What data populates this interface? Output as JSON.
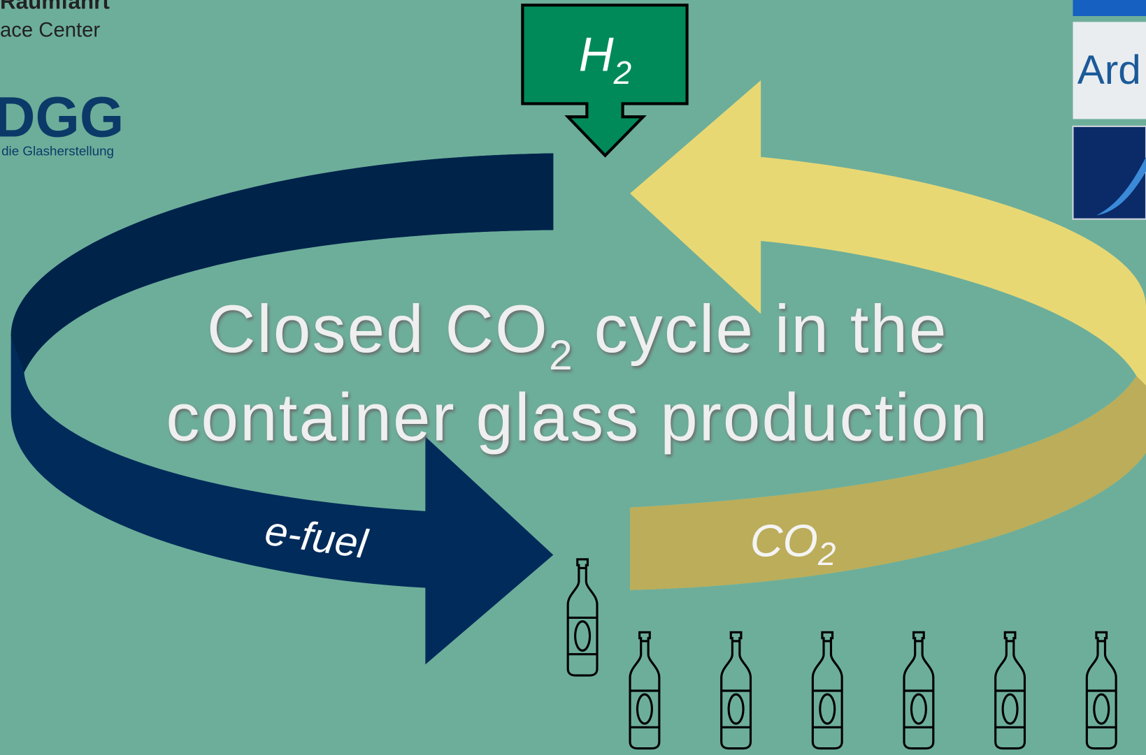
{
  "logos": {
    "dlr": {
      "line1": "Raumfahrt",
      "line2": "ace Center"
    },
    "dgg": {
      "name": "DGG",
      "tagline": "die Glasherstellung"
    },
    "ardagh": {
      "name": "Ard"
    }
  },
  "inputs": {
    "h2": {
      "symbol": "H",
      "sub": "2"
    }
  },
  "title": {
    "line1_before": "Closed CO",
    "line1_sub": "2",
    "line1_after": " cycle in the",
    "line2": "container glass production"
  },
  "arrows": {
    "efuel": "e-fuel",
    "co2": {
      "symbol": "CO",
      "sub": "2"
    }
  }
}
